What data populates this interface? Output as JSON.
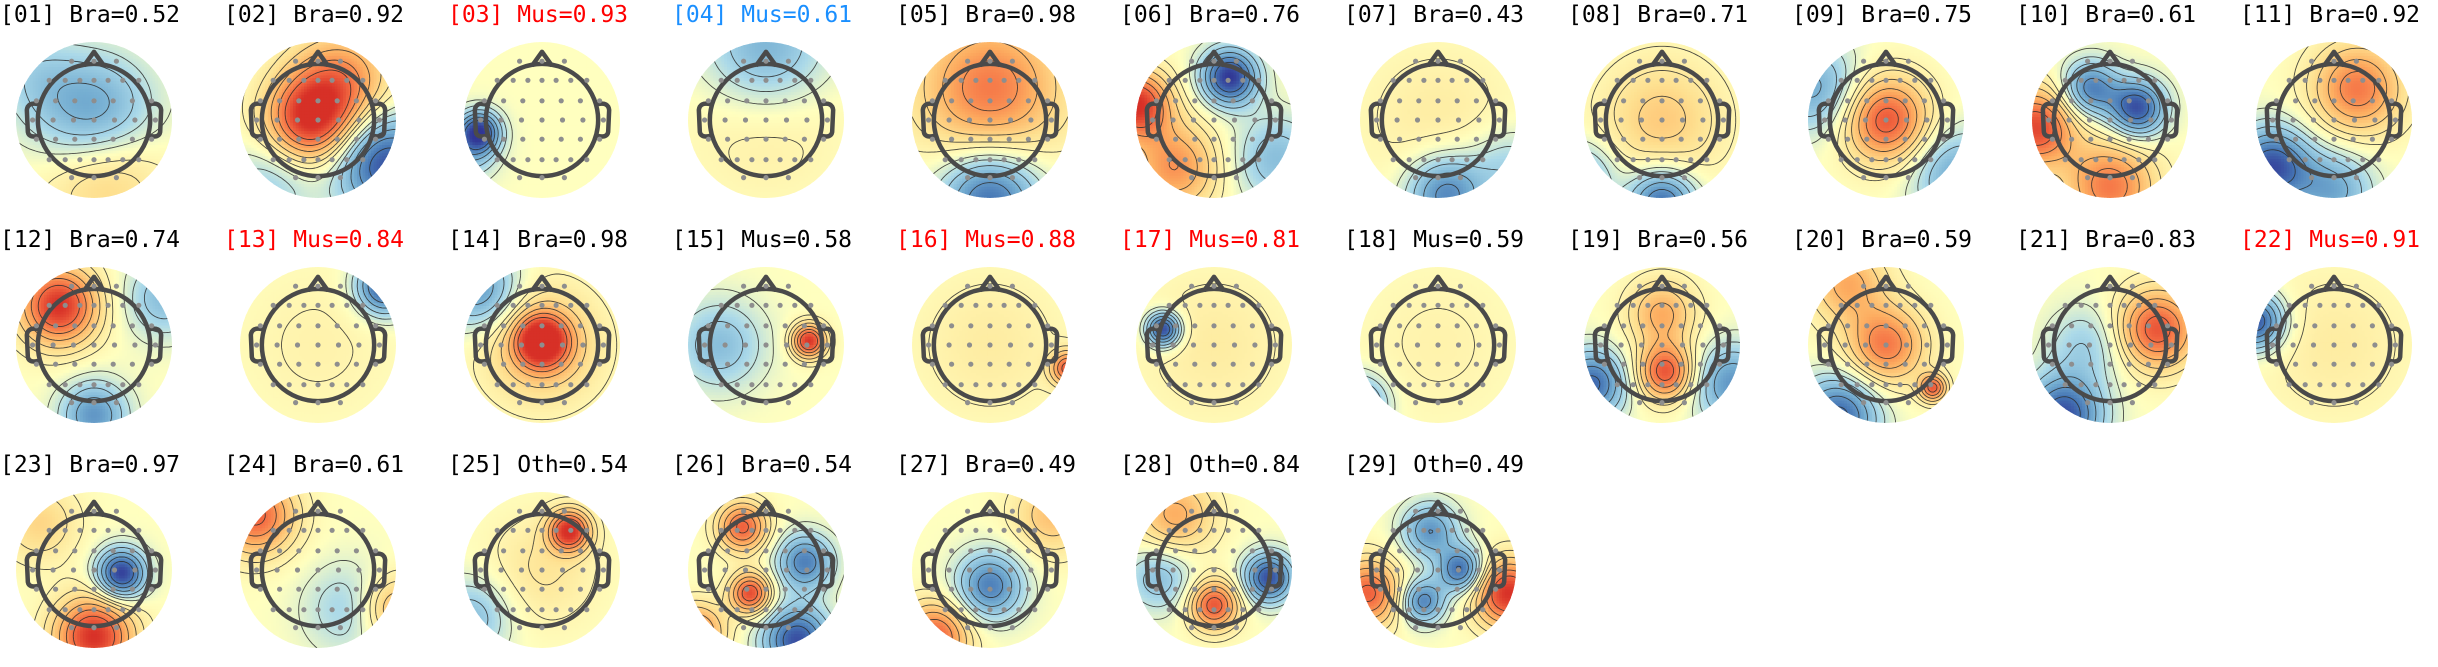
{
  "figure": {
    "colors": {
      "default": "#000000",
      "muscle": "#ff0000",
      "muscle_low": "#1a8fff",
      "head_outline": "#4a4a4a",
      "sensor": "#8e8e8e",
      "contour": "#2b2b2b"
    },
    "components": [
      {
        "label": "[01] Bra=0.52",
        "color": "default",
        "blobs": [
          {
            "p": [
              0.0,
              0.0
            ],
            "v": -0.7,
            "s": 0.55
          },
          {
            "p": [
              0.1,
              0.6
            ],
            "v": 0.5,
            "s": 0.55
          },
          {
            "p": [
              -0.8,
              -0.6
            ],
            "v": -0.2,
            "s": 0.4
          }
        ]
      },
      {
        "label": "[02] Bra=0.92",
        "color": "default",
        "blobs": [
          {
            "p": [
              -0.1,
              0.0
            ],
            "v": 0.95,
            "s": 0.4
          },
          {
            "p": [
              0.3,
              -0.5
            ],
            "v": 0.6,
            "s": 0.45
          },
          {
            "p": [
              0.85,
              0.55
            ],
            "v": -0.9,
            "s": 0.45
          },
          {
            "p": [
              -0.6,
              0.8
            ],
            "v": -0.3,
            "s": 0.4
          }
        ]
      },
      {
        "label": "[03] Mus=0.93",
        "color": "muscle",
        "blobs": [
          {
            "p": [
              -0.8,
              0.15
            ],
            "v": -0.9,
            "s": 0.18
          },
          {
            "p": [
              -0.95,
              0.4
            ],
            "v": -0.4,
            "s": 0.25
          }
        ]
      },
      {
        "label": "[04] Mus=0.61",
        "color": "muscle_low",
        "blobs": [
          {
            "p": [
              0.0,
              -0.9
            ],
            "v": -0.5,
            "s": 0.55
          },
          {
            "p": [
              0.0,
              0.0
            ],
            "v": 0.15,
            "s": 0.7
          }
        ]
      },
      {
        "label": "[05] Bra=0.98",
        "color": "default",
        "blobs": [
          {
            "p": [
              0.0,
              -0.4
            ],
            "v": 0.7,
            "s": 0.65
          },
          {
            "p": [
              0.0,
              1.0
            ],
            "v": -0.8,
            "s": 0.45
          }
        ]
      },
      {
        "label": "[06] Bra=0.76",
        "color": "default",
        "blobs": [
          {
            "p": [
              0.2,
              -0.55
            ],
            "v": -1.0,
            "s": 0.25
          },
          {
            "p": [
              -1.0,
              -0.2
            ],
            "v": 1.0,
            "s": 0.3
          },
          {
            "p": [
              -0.5,
              0.6
            ],
            "v": 0.6,
            "s": 0.4
          },
          {
            "p": [
              0.8,
              0.5
            ],
            "v": -0.4,
            "s": 0.4
          }
        ]
      },
      {
        "label": "[07] Bra=0.43",
        "color": "default",
        "blobs": [
          {
            "p": [
              0.0,
              0.0
            ],
            "v": 0.15,
            "s": 0.7
          },
          {
            "p": [
              0.1,
              0.95
            ],
            "v": -0.7,
            "s": 0.35
          },
          {
            "p": [
              0.9,
              0.6
            ],
            "v": -0.3,
            "s": 0.35
          }
        ]
      },
      {
        "label": "[08] Bra=0.71",
        "color": "default",
        "blobs": [
          {
            "p": [
              0.0,
              0.0
            ],
            "v": 0.35,
            "s": 0.55
          },
          {
            "p": [
              0.0,
              1.05
            ],
            "v": -0.8,
            "s": 0.3
          },
          {
            "p": [
              -1.0,
              0.7
            ],
            "v": -0.4,
            "s": 0.3
          }
        ]
      },
      {
        "label": "[09] Bra=0.75",
        "color": "default",
        "blobs": [
          {
            "p": [
              0.0,
              0.0
            ],
            "v": 0.85,
            "s": 0.38
          },
          {
            "p": [
              -0.9,
              -0.4
            ],
            "v": -0.5,
            "s": 0.4
          },
          {
            "p": [
              0.9,
              0.7
            ],
            "v": -0.5,
            "s": 0.4
          }
        ]
      },
      {
        "label": "[10] Bra=0.61",
        "color": "default",
        "blobs": [
          {
            "p": [
              -0.25,
              -0.4
            ],
            "v": -0.7,
            "s": 0.25
          },
          {
            "p": [
              0.35,
              -0.15
            ],
            "v": -0.9,
            "s": 0.25
          },
          {
            "p": [
              -0.95,
              0.1
            ],
            "v": 0.9,
            "s": 0.35
          },
          {
            "p": [
              0.0,
              0.85
            ],
            "v": 0.7,
            "s": 0.4
          }
        ]
      },
      {
        "label": "[11] Bra=0.92",
        "color": "default",
        "blobs": [
          {
            "p": [
              0.3,
              -0.4
            ],
            "v": 0.7,
            "s": 0.4
          },
          {
            "p": [
              -0.8,
              0.6
            ],
            "v": -0.9,
            "s": 0.35
          },
          {
            "p": [
              0.0,
              0.9
            ],
            "v": -0.5,
            "s": 0.35
          }
        ]
      },
      {
        "label": "[12] Bra=0.74",
        "color": "default",
        "blobs": [
          {
            "p": [
              -0.45,
              -0.5
            ],
            "v": 1.0,
            "s": 0.35
          },
          {
            "p": [
              0.0,
              0.9
            ],
            "v": -0.6,
            "s": 0.3
          },
          {
            "p": [
              0.9,
              -0.6
            ],
            "v": -0.4,
            "s": 0.35
          }
        ]
      },
      {
        "label": "[13] Mus=0.84",
        "color": "muscle",
        "blobs": [
          {
            "p": [
              0.85,
              -0.75
            ],
            "v": -0.9,
            "s": 0.25
          },
          {
            "p": [
              0.0,
              0.0
            ],
            "v": 0.1,
            "s": 0.7
          }
        ]
      },
      {
        "label": "[14] Bra=0.98",
        "color": "default",
        "blobs": [
          {
            "p": [
              0.0,
              -0.05
            ],
            "v": 1.0,
            "s": 0.22
          },
          {
            "p": [
              0.0,
              0.0
            ],
            "v": 0.5,
            "s": 0.5
          },
          {
            "p": [
              -0.8,
              -0.7
            ],
            "v": -0.6,
            "s": 0.35
          }
        ]
      },
      {
        "label": "[15] Mus=0.58",
        "color": "default",
        "blobs": [
          {
            "p": [
              0.55,
              -0.05
            ],
            "v": 1.0,
            "s": 0.15
          },
          {
            "p": [
              -0.6,
              0.0
            ],
            "v": -0.4,
            "s": 0.4
          }
        ]
      },
      {
        "label": "[16] Mus=0.88",
        "color": "muscle",
        "blobs": [
          {
            "p": [
              1.0,
              0.3
            ],
            "v": 0.8,
            "s": 0.15
          },
          {
            "p": [
              0.0,
              0.0
            ],
            "v": 0.15,
            "s": 0.7
          }
        ]
      },
      {
        "label": "[17] Mus=0.81",
        "color": "muscle",
        "blobs": [
          {
            "p": [
              -0.65,
              -0.2
            ],
            "v": -1.0,
            "s": 0.15
          },
          {
            "p": [
              0.0,
              0.0
            ],
            "v": 0.15,
            "s": 0.7
          }
        ]
      },
      {
        "label": "[18] Mus=0.59",
        "color": "default",
        "blobs": [
          {
            "p": [
              -1.0,
              0.75
            ],
            "v": -0.6,
            "s": 0.25
          },
          {
            "p": [
              0.0,
              0.0
            ],
            "v": 0.1,
            "s": 0.7
          }
        ]
      },
      {
        "label": "[19] Bra=0.56",
        "color": "default",
        "blobs": [
          {
            "p": [
              0.05,
              0.35
            ],
            "v": 0.85,
            "s": 0.25
          },
          {
            "p": [
              0.0,
              -0.4
            ],
            "v": 0.5,
            "s": 0.3
          },
          {
            "p": [
              -0.9,
              0.5
            ],
            "v": -0.8,
            "s": 0.3
          },
          {
            "p": [
              0.9,
              0.5
            ],
            "v": -0.6,
            "s": 0.35
          }
        ]
      },
      {
        "label": "[20] Bra=0.59",
        "color": "default",
        "blobs": [
          {
            "p": [
              0.0,
              0.0
            ],
            "v": 0.7,
            "s": 0.35
          },
          {
            "p": [
              0.6,
              0.55
            ],
            "v": 0.8,
            "s": 0.12
          },
          {
            "p": [
              -0.6,
              0.9
            ],
            "v": -0.8,
            "s": 0.35
          },
          {
            "p": [
              -0.5,
              -0.8
            ],
            "v": 0.5,
            "s": 0.35
          }
        ]
      },
      {
        "label": "[21] Bra=0.83",
        "color": "default",
        "blobs": [
          {
            "p": [
              0.6,
              -0.2
            ],
            "v": 0.85,
            "s": 0.35
          },
          {
            "p": [
              -0.6,
              0.9
            ],
            "v": -0.9,
            "s": 0.35
          },
          {
            "p": [
              -0.3,
              0.0
            ],
            "v": -0.3,
            "s": 0.35
          }
        ]
      },
      {
        "label": "[22] Mus=0.91",
        "color": "muscle",
        "blobs": [
          {
            "p": [
              -1.0,
              -0.3
            ],
            "v": -0.9,
            "s": 0.25
          },
          {
            "p": [
              0.0,
              0.0
            ],
            "v": 0.15,
            "s": 0.7
          }
        ]
      },
      {
        "label": "[23] Bra=0.97",
        "color": "default",
        "blobs": [
          {
            "p": [
              0.35,
              0.05
            ],
            "v": -1.0,
            "s": 0.22
          },
          {
            "p": [
              0.0,
              0.85
            ],
            "v": 1.0,
            "s": 0.35
          },
          {
            "p": [
              -0.7,
              -0.6
            ],
            "v": 0.3,
            "s": 0.35
          }
        ]
      },
      {
        "label": "[24] Bra=0.61",
        "color": "default",
        "blobs": [
          {
            "p": [
              -0.8,
              -0.7
            ],
            "v": 0.8,
            "s": 0.35
          },
          {
            "p": [
              0.4,
              0.5
            ],
            "v": -0.3,
            "s": 0.4
          },
          {
            "p": [
              0.95,
              0.5
            ],
            "v": 0.5,
            "s": 0.3
          }
        ]
      },
      {
        "label": "[25] Oth=0.54",
        "color": "default",
        "blobs": [
          {
            "p": [
              0.35,
              -0.5
            ],
            "v": 1.0,
            "s": 0.18
          },
          {
            "p": [
              0.0,
              0.0
            ],
            "v": 0.2,
            "s": 0.5
          },
          {
            "p": [
              -0.9,
              0.6
            ],
            "v": -0.4,
            "s": 0.35
          }
        ]
      },
      {
        "label": "[26] Bra=0.54",
        "color": "default",
        "blobs": [
          {
            "p": [
              -0.3,
              -0.55
            ],
            "v": 0.8,
            "s": 0.22
          },
          {
            "p": [
              -0.2,
              0.3
            ],
            "v": 0.9,
            "s": 0.18
          },
          {
            "p": [
              0.4,
              0.9
            ],
            "v": -0.9,
            "s": 0.3
          },
          {
            "p": [
              0.5,
              -0.1
            ],
            "v": -0.7,
            "s": 0.25
          },
          {
            "p": [
              -0.9,
              0.8
            ],
            "v": 0.7,
            "s": 0.25
          }
        ]
      },
      {
        "label": "[27] Bra=0.49",
        "color": "default",
        "blobs": [
          {
            "p": [
              0.0,
              0.2
            ],
            "v": -0.7,
            "s": 0.3
          },
          {
            "p": [
              -0.7,
              0.85
            ],
            "v": 0.8,
            "s": 0.3
          },
          {
            "p": [
              0.8,
              -0.7
            ],
            "v": 0.4,
            "s": 0.35
          }
        ]
      },
      {
        "label": "[28] Oth=0.84",
        "color": "default",
        "blobs": [
          {
            "p": [
              0.0,
              0.45
            ],
            "v": 0.85,
            "s": 0.22
          },
          {
            "p": [
              0.7,
              0.1
            ],
            "v": -0.9,
            "s": 0.22
          },
          {
            "p": [
              -0.7,
              0.1
            ],
            "v": -0.4,
            "s": 0.3
          },
          {
            "p": [
              -0.5,
              -0.7
            ],
            "v": 0.5,
            "s": 0.35
          }
        ]
      },
      {
        "label": "[29] Oth=0.49",
        "color": "default",
        "blobs": [
          {
            "p": [
              -0.1,
              -0.5
            ],
            "v": -0.6,
            "s": 0.25
          },
          {
            "p": [
              0.3,
              0.0
            ],
            "v": -0.8,
            "s": 0.2
          },
          {
            "p": [
              -0.2,
              0.4
            ],
            "v": -0.7,
            "s": 0.2
          },
          {
            "p": [
              0.9,
              0.3
            ],
            "v": 1.0,
            "s": 0.3
          },
          {
            "p": [
              -0.9,
              0.3
            ],
            "v": 0.8,
            "s": 0.3
          }
        ]
      }
    ]
  }
}
